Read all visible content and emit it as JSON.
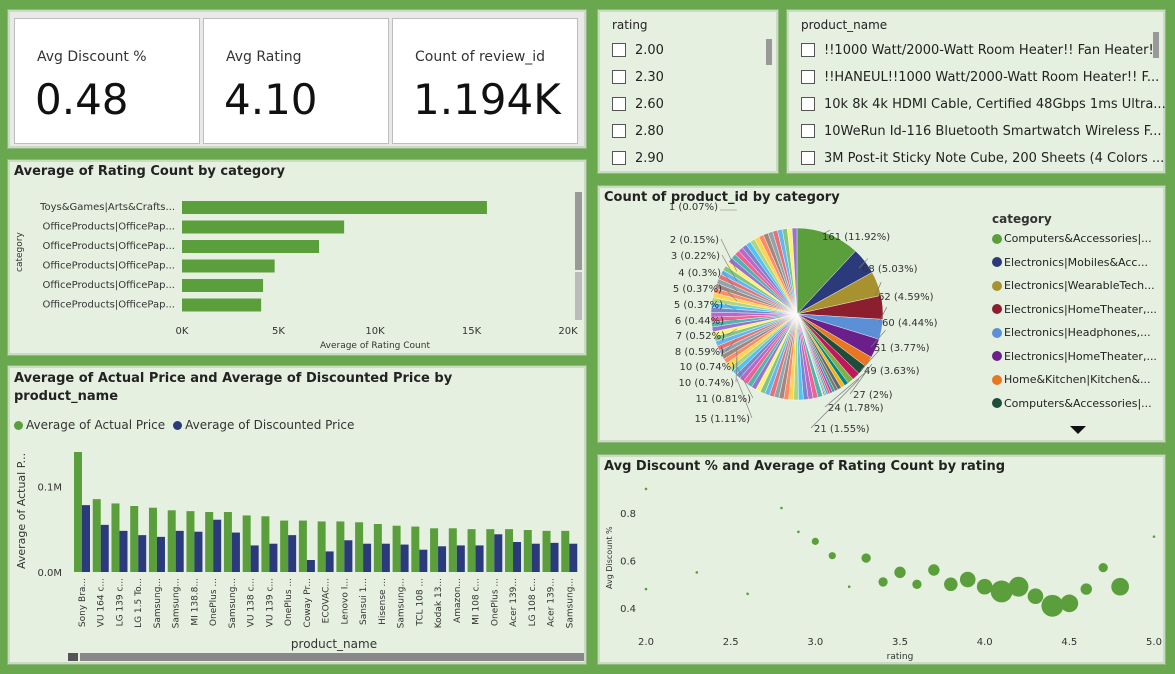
{
  "kpis": {
    "avg_discount": {
      "label": "Avg Discount %",
      "value": "0.48"
    },
    "avg_rating": {
      "label": "Avg Rating",
      "value": "4.10"
    },
    "review_count": {
      "label": "Count of review_id",
      "value": "1.194K"
    }
  },
  "rating_slicer": {
    "header": "rating",
    "items": [
      "2.00",
      "2.30",
      "2.60",
      "2.80",
      "2.90"
    ]
  },
  "product_slicer": {
    "header": "product_name",
    "items": [
      "!!1000 Watt/2000-Watt Room Heater!! Fan Heater!!",
      "!!HANEUL!!1000 Watt/2000-Watt Room Heater!! F...",
      "10k 8k 4k HDMI Cable, Certified 48Gbps 1ms Ultra...",
      "10WeRun Id-116 Bluetooth Smartwatch Wireless F...",
      "3M Post-it Sticky Note Cube, 200 Sheets (4 Colors ..."
    ]
  },
  "colors": {
    "primary": "#5b9f3c",
    "secondary": "#2b3a7a",
    "panel_bg": "#e6f0e0",
    "dashboard_bg": "#6aa84f"
  },
  "chart_data": [
    {
      "id": "rating_count_by_category",
      "type": "bar",
      "orientation": "horizontal",
      "title": "Average of Rating Count by category",
      "xlabel": "Average of Rating Count",
      "ylabel": "category",
      "xlim": [
        0,
        20000
      ],
      "xticks": [
        "0K",
        "5K",
        "10K",
        "15K",
        "20K"
      ],
      "categories": [
        "Toys&Games|Arts&Crafts...",
        "OfficeProducts|OfficePap...",
        "OfficeProducts|OfficePap...",
        "OfficeProducts|OfficePap...",
        "OfficeProducts|OfficePap...",
        "OfficeProducts|OfficePap..."
      ],
      "values": [
        15800,
        8400,
        7100,
        4800,
        4200,
        4100
      ]
    },
    {
      "id": "price_by_product",
      "type": "bar",
      "title": "Average of Actual Price and Average of Discounted Price by product_name",
      "xlabel": "product_name",
      "ylabel": "Average of Actual P...",
      "ylim": [
        0,
        140000
      ],
      "yticks": [
        {
          "v": 0,
          "label": "0.0M"
        },
        {
          "v": 100000,
          "label": "0.1M"
        }
      ],
      "categories": [
        "Sony Bra...",
        "VU 164 c...",
        "LG 139 c...",
        "LG 1.5 To...",
        "Samsung...",
        "Samsung...",
        "MI 138.8...",
        "OnePlus ...",
        "Samsung...",
        "VU 138 c...",
        "VU 139 c...",
        "OnePlus ...",
        "Coway Pr...",
        "ECOVAC...",
        "Lenovo I...",
        "Sansui 1...",
        "Hisense ...",
        "Samsung...",
        "TCL 108 ...",
        "Kodak 13...",
        "Amazon...",
        "MI 108 c...",
        "OnePlus ...",
        "Acer 139...",
        "LG 108 c...",
        "Acer 139...",
        "Samsung..."
      ],
      "series": [
        {
          "name": "Average of Actual Price",
          "values": [
            140000,
            85000,
            80000,
            77000,
            75000,
            72000,
            71000,
            70000,
            70000,
            66000,
            65000,
            60000,
            60000,
            59000,
            59000,
            58000,
            56000,
            54000,
            53000,
            51000,
            51000,
            50000,
            50000,
            50000,
            49000,
            48000,
            48000
          ]
        },
        {
          "name": "Average of Discounted Price",
          "values": [
            78000,
            55000,
            48000,
            43000,
            41000,
            48000,
            47000,
            61000,
            46000,
            31000,
            33000,
            43000,
            14000,
            24000,
            37000,
            33000,
            33000,
            32000,
            26000,
            30000,
            31000,
            31000,
            44000,
            35000,
            33000,
            34000,
            33000
          ]
        }
      ]
    },
    {
      "id": "product_count_by_category",
      "type": "pie",
      "title": "Count of product_id by category",
      "legend_title": "category",
      "legend": [
        "Computers&Accessories|...",
        "Electronics|Mobiles&Acc...",
        "Electronics|WearableTech...",
        "Electronics|HomeTheater,...",
        "Electronics|Headphones,...",
        "Electronics|HomeTheater,...",
        "Home&Kitchen|Kitchen&...",
        "Computers&Accessories|..."
      ],
      "slices": [
        {
          "value": 161,
          "label": "161 (11.92%)",
          "color": "#5b9f3c"
        },
        {
          "value": 68,
          "label": "68 (5.03%)",
          "color": "#2b3a7a"
        },
        {
          "value": 62,
          "label": "62 (4.59%)",
          "color": "#a89230"
        },
        {
          "value": 60,
          "label": "60 (4.44%)",
          "color": "#8b1f2e"
        },
        {
          "value": 51,
          "label": "51 (3.77%)",
          "color": "#5b8fd6"
        },
        {
          "value": 49,
          "label": "49 (3.63%)",
          "color": "#6a1f8a"
        },
        {
          "value": 27,
          "label": "27 (2%)",
          "color": "#e87722"
        },
        {
          "value": 24,
          "label": "24 (1.78%)",
          "color": "#1f4d3a"
        },
        {
          "value": 21,
          "label": "21 (1.55%)",
          "color": "#c2185b"
        },
        {
          "value": 15,
          "label": "15 (1.11%)",
          "color": "#7cb342"
        },
        {
          "value": 11,
          "label": "11 (0.81%)",
          "color": "#00838f"
        },
        {
          "value": 10,
          "label": "10 (0.74%)",
          "color": "#ffb300"
        },
        {
          "value": 10,
          "label": "10 (0.74%)",
          "color": "#546e7a"
        },
        {
          "value": 8,
          "label": "8 (0.59%)",
          "color": "#8d6e63"
        },
        {
          "value": 7,
          "label": "7 (0.52%)",
          "color": "#26a69a"
        },
        {
          "value": 6,
          "label": "6 (0.44%)",
          "color": "#ab47bc"
        },
        {
          "value": 5,
          "label": "5 (0.37%)",
          "color": "#ef5350"
        },
        {
          "value": 5,
          "label": "5 (0.37%)",
          "color": "#42a5f5"
        },
        {
          "value": 4,
          "label": "4 (0.3%)",
          "color": "#9ccc65"
        },
        {
          "value": 3,
          "label": "3 (0.22%)",
          "color": "#5c6bc0"
        },
        {
          "value": 2,
          "label": "2 (0.15%)",
          "color": "#d4e157"
        },
        {
          "value": 1,
          "label": "1 (0.07%)",
          "color": "#78909c"
        }
      ]
    },
    {
      "id": "discount_vs_rating",
      "type": "scatter",
      "title": "Avg Discount % and Average of Rating Count by rating",
      "xlabel": "rating",
      "ylabel": "Avg Discount %",
      "xlim": [
        2.0,
        5.0
      ],
      "ylim": [
        0.3,
        0.95
      ],
      "xticks": [
        2.0,
        2.5,
        3.0,
        3.5,
        4.0,
        4.5,
        5.0
      ],
      "yticks": [
        0.4,
        0.6,
        0.8
      ],
      "points": [
        {
          "x": 2.0,
          "y": 0.9,
          "size": 1
        },
        {
          "x": 2.0,
          "y": 0.48,
          "size": 1
        },
        {
          "x": 2.3,
          "y": 0.55,
          "size": 1
        },
        {
          "x": 2.6,
          "y": 0.46,
          "size": 1
        },
        {
          "x": 2.8,
          "y": 0.82,
          "size": 1
        },
        {
          "x": 2.9,
          "y": 0.72,
          "size": 1
        },
        {
          "x": 3.0,
          "y": 0.68,
          "size": 2
        },
        {
          "x": 3.1,
          "y": 0.62,
          "size": 2
        },
        {
          "x": 3.2,
          "y": 0.49,
          "size": 1
        },
        {
          "x": 3.3,
          "y": 0.61,
          "size": 3
        },
        {
          "x": 3.4,
          "y": 0.51,
          "size": 3
        },
        {
          "x": 3.5,
          "y": 0.55,
          "size": 4
        },
        {
          "x": 3.6,
          "y": 0.5,
          "size": 3
        },
        {
          "x": 3.7,
          "y": 0.56,
          "size": 4
        },
        {
          "x": 3.8,
          "y": 0.5,
          "size": 5
        },
        {
          "x": 3.9,
          "y": 0.52,
          "size": 6
        },
        {
          "x": 4.0,
          "y": 0.49,
          "size": 6
        },
        {
          "x": 4.1,
          "y": 0.47,
          "size": 9
        },
        {
          "x": 4.2,
          "y": 0.49,
          "size": 8
        },
        {
          "x": 4.3,
          "y": 0.45,
          "size": 6
        },
        {
          "x": 4.4,
          "y": 0.41,
          "size": 9
        },
        {
          "x": 4.5,
          "y": 0.42,
          "size": 7
        },
        {
          "x": 4.6,
          "y": 0.48,
          "size": 4
        },
        {
          "x": 4.7,
          "y": 0.57,
          "size": 3
        },
        {
          "x": 4.8,
          "y": 0.49,
          "size": 7
        },
        {
          "x": 5.0,
          "y": 0.7,
          "size": 1
        }
      ]
    }
  ]
}
